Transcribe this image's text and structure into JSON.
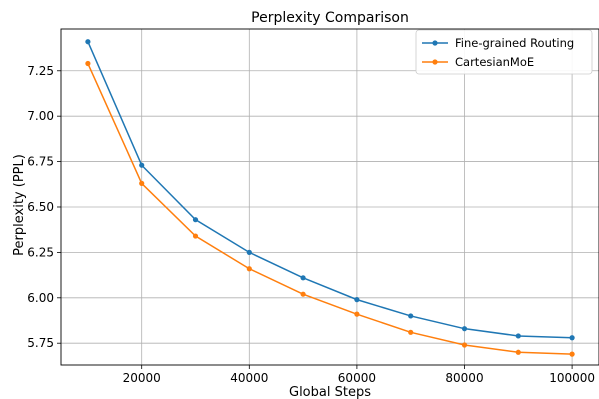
{
  "chart_data": {
    "type": "line",
    "title": "Perplexity Comparison",
    "xlabel": "Global Steps",
    "ylabel": "Perplexity (PPL)",
    "x": [
      10000,
      20000,
      30000,
      40000,
      50000,
      60000,
      70000,
      80000,
      90000,
      100000
    ],
    "xlim": [
      5000,
      105000
    ],
    "ylim": [
      5.63,
      7.48
    ],
    "x_ticks": [
      20000,
      40000,
      60000,
      80000,
      100000
    ],
    "x_tick_labels": [
      "20000",
      "40000",
      "60000",
      "80000",
      "100000"
    ],
    "y_ticks": [
      5.75,
      6.0,
      6.25,
      6.5,
      6.75,
      7.0,
      7.25
    ],
    "y_tick_labels": [
      "5.75",
      "6.00",
      "6.25",
      "6.50",
      "6.75",
      "7.00",
      "7.25"
    ],
    "grid": true,
    "legend_position": "top-right",
    "series": [
      {
        "name": "Fine-grained Routing",
        "color": "#1f77b4",
        "values": [
          7.41,
          6.73,
          6.43,
          6.25,
          6.11,
          5.99,
          5.9,
          5.83,
          5.79,
          5.78
        ]
      },
      {
        "name": "CartesianMoE",
        "color": "#ff7f0e",
        "values": [
          7.29,
          6.63,
          6.34,
          6.16,
          6.02,
          5.91,
          5.81,
          5.74,
          5.7,
          5.69
        ]
      }
    ]
  }
}
